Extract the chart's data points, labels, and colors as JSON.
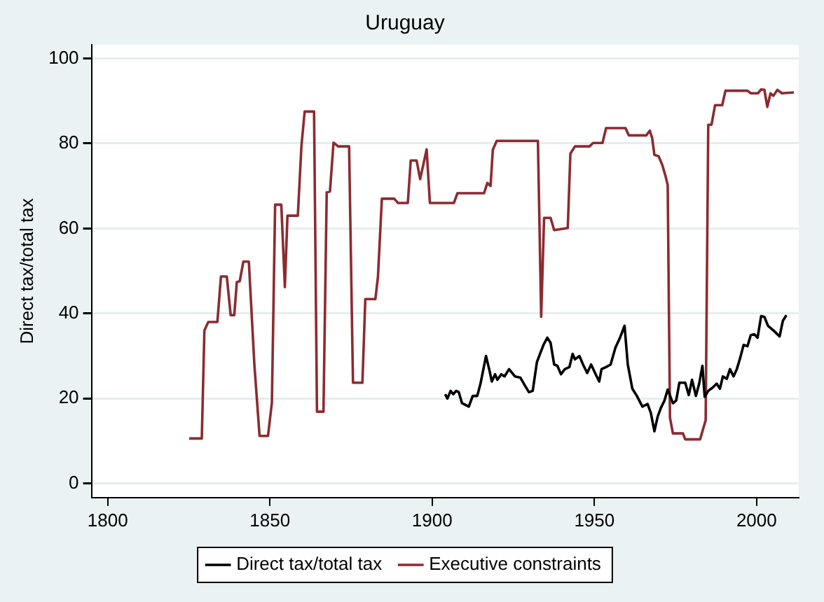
{
  "chart_data": {
    "type": "line",
    "title": "Uruguay",
    "ylabel": "Direct tax/total tax",
    "xlim": [
      1795,
      2013
    ],
    "xticks": [
      1800,
      1850,
      1900,
      1950,
      2000
    ],
    "ylim": [
      -3.3,
      103.2
    ],
    "yticks": [
      0,
      20,
      40,
      60,
      80,
      100
    ],
    "grid": "y",
    "legend": "bottom",
    "marker": "none",
    "line_style": "solid",
    "series": [
      {
        "name": "Direct tax/total tax",
        "color": "#000000",
        "x": [
          1904,
          1904.7,
          1905.7,
          1906.5,
          1907.4,
          1908.2,
          1909.2,
          1911.3,
          1912.5,
          1913.9,
          1914.9,
          1916.6,
          1917.7,
          1918.4,
          1919.4,
          1920.1,
          1921.3,
          1922.3,
          1923.7,
          1925.5,
          1927.2,
          1928.7,
          1929.8,
          1931,
          1932.3,
          1934.3,
          1935.5,
          1936.5,
          1937.6,
          1938.6,
          1939.7,
          1940.9,
          1942.3,
          1943.3,
          1944,
          1945.4,
          1946.5,
          1947.8,
          1949,
          1950.4,
          1951.5,
          1952.2,
          1953.6,
          1955,
          1956.5,
          1957.9,
          1959.3,
          1960.3,
          1961.7,
          1963.1,
          1964.8,
          1966.4,
          1967.4,
          1968.5,
          1969.5,
          1970.5,
          1971.6,
          1972.6,
          1974.2,
          1975.2,
          1976.2,
          1978,
          1979.1,
          1980.1,
          1981.3,
          1982.3,
          1983.3,
          1984,
          1985.1,
          1986.5,
          1987.7,
          1988.7,
          1989.6,
          1990.8,
          1991.8,
          1992.9,
          1993.9,
          1995,
          1996,
          1997.2,
          1998.2,
          1999.3,
          2000.3,
          2001.4,
          2002.4,
          2003.5,
          2005.2,
          2007.1,
          2008.1,
          2009.2
        ],
        "values": [
          21,
          20,
          21.8,
          21,
          21.8,
          21.5,
          18.9,
          18.1,
          20.6,
          20.6,
          23.5,
          30,
          26.5,
          24,
          25.7,
          24.4,
          25.7,
          25.2,
          26.9,
          25.2,
          24.9,
          22.9,
          21.5,
          21.8,
          28.6,
          32.6,
          34.3,
          33.1,
          28,
          27.7,
          25.7,
          26.9,
          27.4,
          30.5,
          29.2,
          30,
          28,
          26,
          28,
          25.7,
          24,
          26.9,
          27.4,
          28,
          32,
          34.3,
          37.1,
          28,
          22.3,
          20.6,
          18.1,
          18.7,
          16.6,
          12.3,
          15.7,
          17.8,
          19.5,
          22.1,
          18.9,
          19.5,
          23.7,
          23.7,
          20.8,
          24.4,
          20.6,
          23.5,
          27.7,
          20.4,
          21.8,
          22.6,
          23.5,
          22.3,
          25.2,
          24.6,
          26.9,
          25.2,
          26.9,
          29.7,
          32.6,
          32.3,
          34.9,
          35.1,
          34.3,
          39.4,
          39.2,
          37.1,
          36,
          34.6,
          38.3,
          39.6
        ]
      },
      {
        "name": "Executive constraints",
        "color": "#8c2b30",
        "x": [
          1825.1,
          1829,
          1829.8,
          1831,
          1833.8,
          1834.9,
          1836.7,
          1837.9,
          1839,
          1839.8,
          1840.7,
          1841.8,
          1843.5,
          1845.2,
          1846.8,
          1849.4,
          1850.6,
          1851.6,
          1853.5,
          1854.6,
          1855.4,
          1858.6,
          1859.7,
          1860.7,
          1863.6,
          1864.5,
          1866.5,
          1867.5,
          1868.5,
          1869.6,
          1871,
          1874.4,
          1875.6,
          1878.5,
          1879.4,
          1882.5,
          1883.3,
          1884.5,
          1888.3,
          1889.5,
          1892.5,
          1893.4,
          1895.2,
          1896.3,
          1898.3,
          1899.3,
          1906.7,
          1907.8,
          1916,
          1917,
          1918,
          1918.7,
          1919.9,
          1932.6,
          1933.6,
          1934.5,
          1936.5,
          1937.6,
          1941.8,
          1942.6,
          1944,
          1948.5,
          1949.6,
          1952.5,
          1953.6,
          1959.6,
          1960.6,
          1966,
          1967.1,
          1967.8,
          1968.5,
          1969.8,
          1970.9,
          1971.9,
          1972.6,
          1973.3,
          1974.2,
          1977.3,
          1978,
          1982.6,
          1984.3,
          1985.1,
          1986.1,
          1987.2,
          1989.4,
          1990.4,
          1997.2,
          1998.2,
          2000.4,
          2001.4,
          2002.4,
          2003.3,
          2004.3,
          2005.2,
          2006.4,
          2007.8,
          2011.5
        ],
        "values": [
          10.6,
          10.6,
          36,
          38,
          38,
          48.7,
          48.7,
          39.6,
          39.6,
          47.4,
          47.6,
          52.2,
          52.2,
          28,
          11.2,
          11.2,
          19,
          65.6,
          65.6,
          46.2,
          63,
          63,
          79.3,
          87.5,
          87.5,
          16.9,
          16.9,
          68.5,
          68.7,
          80.2,
          79.3,
          79.3,
          23.7,
          23.7,
          43.4,
          43.4,
          48.7,
          67,
          67,
          66,
          66,
          76,
          76,
          71.6,
          78.6,
          66,
          66,
          68.3,
          68.3,
          70.7,
          70,
          78.5,
          80.6,
          80.6,
          39.2,
          62.5,
          62.5,
          59.6,
          60.1,
          77.6,
          79.3,
          79.3,
          80.1,
          80.1,
          83.6,
          83.6,
          81.9,
          81.9,
          83,
          81.3,
          77.3,
          77,
          75,
          72.4,
          70.2,
          15.5,
          11.8,
          11.8,
          10.4,
          10.4,
          14.9,
          84.4,
          84.4,
          89,
          89,
          92.4,
          92.4,
          91.8,
          91.8,
          92.7,
          92.6,
          88.6,
          91.8,
          91.2,
          92.6,
          91.8,
          92
        ]
      }
    ]
  }
}
